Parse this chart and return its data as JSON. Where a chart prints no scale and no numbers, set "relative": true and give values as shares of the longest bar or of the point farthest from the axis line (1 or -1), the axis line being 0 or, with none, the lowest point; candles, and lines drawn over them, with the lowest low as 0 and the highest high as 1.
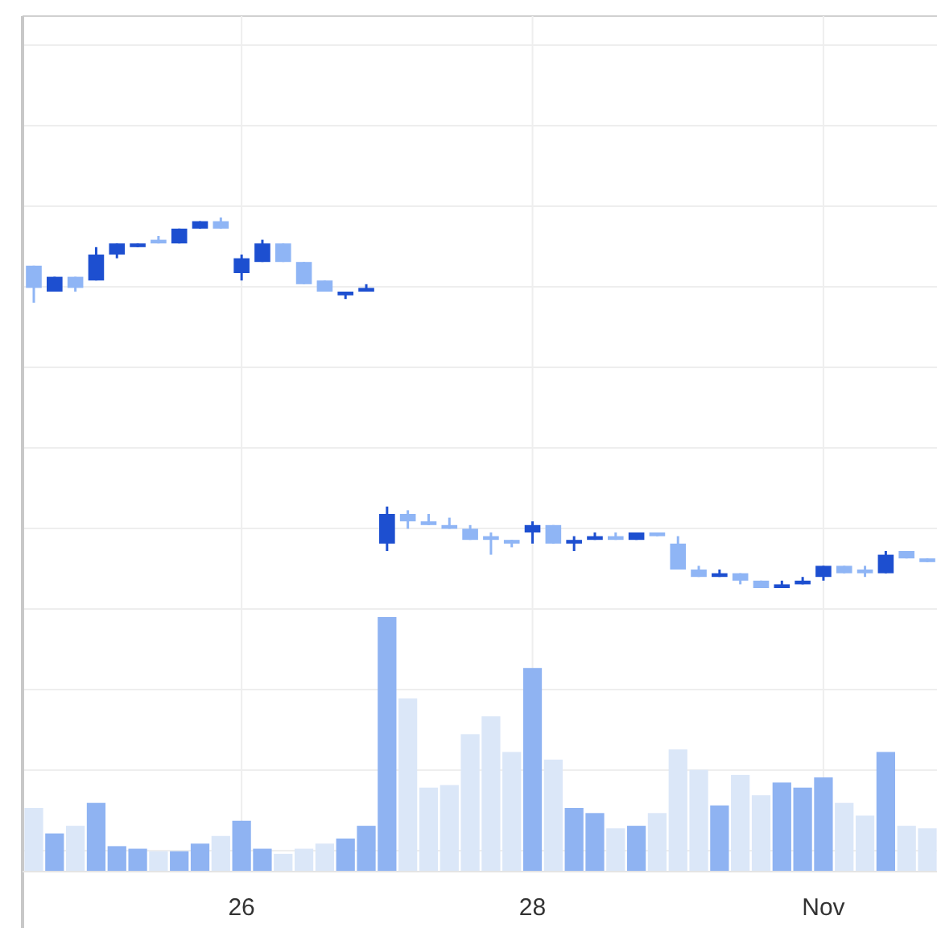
{
  "chart_data": [
    {
      "type": "candlestick",
      "relative": true,
      "grid": true,
      "tick_labels": false,
      "categories": [
        null,
        null,
        null,
        null,
        null,
        null,
        null,
        null,
        null,
        null,
        null,
        null,
        null,
        null,
        null,
        null,
        null,
        null,
        null,
        null,
        null,
        null,
        null,
        null,
        null,
        null,
        null,
        null,
        null,
        null,
        null,
        null,
        null,
        null,
        null,
        null,
        null,
        null,
        null,
        null,
        null,
        null,
        null,
        null
      ],
      "ohlc": [
        [
          0.87,
          0.87,
          0.77,
          0.81
        ],
        [
          0.8,
          0.84,
          0.8,
          0.84
        ],
        [
          0.84,
          0.84,
          0.8,
          0.81
        ],
        [
          0.83,
          0.92,
          0.83,
          0.9
        ],
        [
          0.9,
          0.93,
          0.89,
          0.93
        ],
        [
          0.92,
          0.93,
          0.92,
          0.93
        ],
        [
          0.94,
          0.95,
          0.93,
          0.93
        ],
        [
          0.93,
          0.97,
          0.93,
          0.97
        ],
        [
          0.97,
          0.99,
          0.97,
          0.99
        ],
        [
          0.99,
          1,
          0.97,
          0.97
        ],
        [
          0.85,
          0.9,
          0.83,
          0.89
        ],
        [
          0.88,
          0.94,
          0.88,
          0.93
        ],
        [
          0.93,
          0.93,
          0.88,
          0.88
        ],
        [
          0.88,
          0.88,
          0.82,
          0.82
        ],
        [
          0.83,
          0.83,
          0.8,
          0.8
        ],
        [
          0.79,
          0.8,
          0.78,
          0.8
        ],
        [
          0.8,
          0.82,
          0.8,
          0.81
        ],
        [
          0.12,
          0.22,
          0.1,
          0.2
        ],
        [
          0.2,
          0.21,
          0.16,
          0.18
        ],
        [
          0.18,
          0.2,
          0.17,
          0.17
        ],
        [
          0.17,
          0.19,
          0.16,
          0.16
        ],
        [
          0.16,
          0.17,
          0.13,
          0.13
        ],
        [
          0.14,
          0.15,
          0.09,
          0.13
        ],
        [
          0.13,
          0.13,
          0.11,
          0.12
        ],
        [
          0.15,
          0.18,
          0.12,
          0.17
        ],
        [
          0.17,
          0.17,
          0.12,
          0.12
        ],
        [
          0.12,
          0.14,
          0.1,
          0.13
        ],
        [
          0.13,
          0.15,
          0.13,
          0.14
        ],
        [
          0.14,
          0.15,
          0.13,
          0.13
        ],
        [
          0.13,
          0.15,
          0.13,
          0.15
        ],
        [
          0.15,
          0.15,
          0.14,
          0.14
        ],
        [
          0.12,
          0.14,
          0.05,
          0.05
        ],
        [
          0.05,
          0.06,
          0.03,
          0.03
        ],
        [
          0.03,
          0.05,
          0.03,
          0.04
        ],
        [
          0.04,
          0.04,
          0.01,
          0.02
        ],
        [
          0.02,
          0.02,
          0,
          0
        ],
        [
          0,
          0.02,
          0,
          0.01
        ],
        [
          0.01,
          0.03,
          0.01,
          0.02
        ],
        [
          0.03,
          0.06,
          0.02,
          0.06
        ],
        [
          0.06,
          0.06,
          0.04,
          0.04
        ],
        [
          0.05,
          0.06,
          0.03,
          0.04
        ],
        [
          0.04,
          0.1,
          0.04,
          0.09
        ],
        [
          0.1,
          0.1,
          0.08,
          0.08
        ],
        [
          0.08,
          0.08,
          0.07,
          0.07
        ]
      ],
      "colors": [
        "#8fb5f5",
        "#1d4fd0",
        "#8fb5f5",
        "#1d4fd0",
        "#1d4fd0",
        "#1d4fd0",
        "#8fb5f5",
        "#1d4fd0",
        "#1d4fd0",
        "#8fb5f5",
        "#1d4fd0",
        "#1d4fd0",
        "#8fb5f5",
        "#8fb5f5",
        "#8fb5f5",
        "#1d4fd0",
        "#1d4fd0",
        "#1d4fd0",
        "#8fb5f5",
        "#8fb5f5",
        "#8fb5f5",
        "#8fb5f5",
        "#8fb5f5",
        "#8fb5f5",
        "#1d4fd0",
        "#8fb5f5",
        "#1d4fd0",
        "#1d4fd0",
        "#8fb5f5",
        "#1d4fd0",
        "#8fb5f5",
        "#8fb5f5",
        "#8fb5f5",
        "#1d4fd0",
        "#8fb5f5",
        "#8fb5f5",
        "#1d4fd0",
        "#1d4fd0",
        "#1d4fd0",
        "#8fb5f5",
        "#8fb5f5",
        "#1d4fd0",
        "#8fb5f5",
        "#8fb5f5"
      ]
    },
    {
      "type": "bar",
      "relative": true,
      "grid": true,
      "tick_labels": "x",
      "categories": [
        null,
        null,
        null,
        null,
        null,
        null,
        null,
        null,
        null,
        null,
        "26",
        null,
        null,
        null,
        null,
        null,
        null,
        null,
        null,
        null,
        null,
        null,
        null,
        null,
        "28",
        null,
        null,
        null,
        null,
        null,
        null,
        null,
        null,
        null,
        null,
        null,
        null,
        null,
        "Nov",
        null,
        null,
        null,
        null,
        null
      ],
      "values": [
        0.25,
        0.15,
        0.18,
        0.27,
        0.1,
        0.09,
        0.08,
        0.08,
        0.11,
        0.14,
        0.2,
        0.09,
        0.07,
        0.09,
        0.11,
        0.13,
        0.18,
        1,
        0.68,
        0.33,
        0.34,
        0.54,
        0.61,
        0.47,
        0.8,
        0.44,
        0.25,
        0.23,
        0.17,
        0.18,
        0.23,
        0.48,
        0.4,
        0.26,
        0.38,
        0.3,
        0.35,
        0.33,
        0.37,
        0.27,
        0.22,
        0.47,
        0.18,
        0.17
      ],
      "colors": [
        "#dbe7f8",
        "#8fb3f2",
        "#dbe7f8",
        "#8fb3f2",
        "#8fb3f2",
        "#8fb3f2",
        "#dbe7f8",
        "#8fb3f2",
        "#8fb3f2",
        "#dbe7f8",
        "#8fb3f2",
        "#8fb3f2",
        "#dbe7f8",
        "#dbe7f8",
        "#dbe7f8",
        "#8fb3f2",
        "#8fb3f2",
        "#8fb3f2",
        "#dbe7f8",
        "#dbe7f8",
        "#dbe7f8",
        "#dbe7f8",
        "#dbe7f8",
        "#dbe7f8",
        "#8fb3f2",
        "#dbe7f8",
        "#8fb3f2",
        "#8fb3f2",
        "#dbe7f8",
        "#8fb3f2",
        "#dbe7f8",
        "#dbe7f8",
        "#dbe7f8",
        "#8fb3f2",
        "#dbe7f8",
        "#dbe7f8",
        "#8fb3f2",
        "#8fb3f2",
        "#8fb3f2",
        "#dbe7f8",
        "#dbe7f8",
        "#8fb3f2",
        "#dbe7f8",
        "#dbe7f8"
      ]
    }
  ]
}
